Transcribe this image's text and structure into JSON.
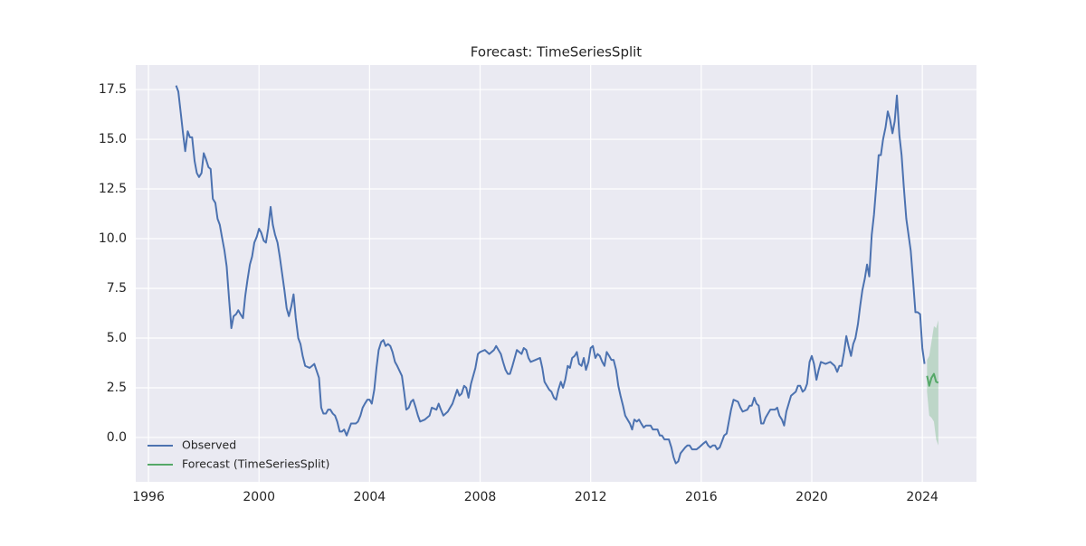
{
  "chart_data": {
    "type": "line",
    "title": "Forecast: TimeSeriesSplit",
    "xlim": [
      1995.54,
      2025.96
    ],
    "xticks": [
      1996,
      2000,
      2004,
      2008,
      2012,
      2016,
      2020,
      2024
    ],
    "ylim": [
      -2.23,
      18.73
    ],
    "yticks": [
      {
        "value": 0,
        "label": "0.0"
      },
      2.5,
      {
        "value": 5,
        "label": "5.0"
      },
      7.5,
      {
        "value": 10,
        "label": "10.0"
      },
      12.5,
      {
        "value": 15,
        "label": "15.0"
      },
      17.5
    ],
    "grid": true,
    "legend": "lower left",
    "series": [
      {
        "name": "Observed",
        "color": "#4c72b0",
        "x": [
          1997.0,
          1997.08,
          1997.17,
          1997.25,
          1997.33,
          1997.42,
          1997.5,
          1997.58,
          1997.67,
          1997.75,
          1997.83,
          1997.92,
          1998.0,
          1998.08,
          1998.17,
          1998.25,
          1998.33,
          1998.42,
          1998.5,
          1998.58,
          1998.67,
          1998.75,
          1998.83,
          1998.92,
          1999.0,
          1999.08,
          1999.17,
          1999.25,
          1999.33,
          1999.42,
          1999.5,
          1999.58,
          1999.67,
          1999.75,
          1999.83,
          1999.92,
          2000.0,
          2000.08,
          2000.17,
          2000.25,
          2000.33,
          2000.42,
          2000.5,
          2000.58,
          2000.67,
          2000.75,
          2000.83,
          2000.92,
          2001.0,
          2001.08,
          2001.17,
          2001.25,
          2001.33,
          2001.42,
          2001.5,
          2001.58,
          2001.67,
          2001.83,
          2001.92,
          2002.0,
          2002.17,
          2002.25,
          2002.33,
          2002.42,
          2002.5,
          2002.58,
          2002.67,
          2002.75,
          2002.83,
          2002.92,
          2003.0,
          2003.08,
          2003.17,
          2003.25,
          2003.33,
          2003.5,
          2003.58,
          2003.67,
          2003.75,
          2003.83,
          2003.92,
          2004.0,
          2004.08,
          2004.17,
          2004.25,
          2004.33,
          2004.42,
          2004.5,
          2004.58,
          2004.67,
          2004.75,
          2004.83,
          2004.92,
          2005.0,
          2005.17,
          2005.25,
          2005.33,
          2005.42,
          2005.5,
          2005.58,
          2005.67,
          2005.75,
          2005.83,
          2006.0,
          2006.17,
          2006.25,
          2006.42,
          2006.5,
          2006.58,
          2006.67,
          2006.83,
          2007.0,
          2007.17,
          2007.25,
          2007.33,
          2007.42,
          2007.5,
          2007.58,
          2007.67,
          2007.83,
          2007.92,
          2008.0,
          2008.17,
          2008.33,
          2008.5,
          2008.58,
          2008.75,
          2008.83,
          2008.92,
          2009.0,
          2009.08,
          2009.17,
          2009.25,
          2009.33,
          2009.5,
          2009.58,
          2009.67,
          2009.75,
          2009.83,
          2010.0,
          2010.17,
          2010.25,
          2010.33,
          2010.5,
          2010.58,
          2010.67,
          2010.75,
          2010.83,
          2010.92,
          2011.0,
          2011.08,
          2011.17,
          2011.25,
          2011.33,
          2011.42,
          2011.5,
          2011.58,
          2011.67,
          2011.75,
          2011.83,
          2011.92,
          2012.0,
          2012.08,
          2012.17,
          2012.25,
          2012.33,
          2012.42,
          2012.5,
          2012.58,
          2012.67,
          2012.75,
          2012.83,
          2012.92,
          2013.0,
          2013.08,
          2013.17,
          2013.25,
          2013.42,
          2013.5,
          2013.58,
          2013.67,
          2013.75,
          2013.83,
          2013.92,
          2014.0,
          2014.17,
          2014.25,
          2014.42,
          2014.5,
          2014.58,
          2014.67,
          2014.83,
          2014.92,
          2015.0,
          2015.08,
          2015.17,
          2015.25,
          2015.42,
          2015.5,
          2015.58,
          2015.67,
          2015.83,
          2015.92,
          2016.0,
          2016.08,
          2016.17,
          2016.25,
          2016.33,
          2016.42,
          2016.5,
          2016.58,
          2016.67,
          2016.75,
          2016.83,
          2016.92,
          2017.0,
          2017.08,
          2017.17,
          2017.33,
          2017.42,
          2017.5,
          2017.67,
          2017.75,
          2017.83,
          2017.92,
          2018.0,
          2018.08,
          2018.17,
          2018.25,
          2018.33,
          2018.5,
          2018.67,
          2018.75,
          2018.83,
          2018.92,
          2019.0,
          2019.08,
          2019.25,
          2019.42,
          2019.5,
          2019.58,
          2019.67,
          2019.75,
          2019.83,
          2019.92,
          2020.0,
          2020.08,
          2020.17,
          2020.25,
          2020.33,
          2020.5,
          2020.67,
          2020.83,
          2020.92,
          2021.0,
          2021.08,
          2021.17,
          2021.25,
          2021.33,
          2021.42,
          2021.5,
          2021.58,
          2021.67,
          2021.75,
          2021.83,
          2021.92,
          2022.0,
          2022.08,
          2022.17,
          2022.25,
          2022.33,
          2022.42,
          2022.5,
          2022.58,
          2022.67,
          2022.75,
          2022.83,
          2022.92,
          2023.0,
          2023.08,
          2023.17,
          2023.25,
          2023.33,
          2023.42,
          2023.5,
          2023.58,
          2023.67,
          2023.75,
          2023.83,
          2023.92,
          2024.0,
          2024.08
        ],
        "values": [
          17.7,
          17.4,
          16.3,
          15.3,
          14.4,
          15.4,
          15.1,
          15.1,
          13.9,
          13.3,
          13.1,
          13.3,
          14.3,
          14.0,
          13.6,
          13.5,
          12.0,
          11.8,
          11.0,
          10.7,
          10.0,
          9.4,
          8.6,
          6.9,
          5.5,
          6.1,
          6.2,
          6.4,
          6.2,
          6.0,
          7.1,
          7.9,
          8.7,
          9.1,
          9.8,
          10.1,
          10.5,
          10.3,
          9.9,
          9.8,
          10.5,
          11.6,
          10.7,
          10.2,
          9.8,
          9.1,
          8.3,
          7.4,
          6.5,
          6.1,
          6.6,
          7.2,
          6.0,
          5.0,
          4.7,
          4.1,
          3.6,
          3.5,
          3.6,
          3.7,
          3.0,
          1.5,
          1.2,
          1.2,
          1.4,
          1.4,
          1.2,
          1.1,
          0.8,
          0.3,
          0.3,
          0.4,
          0.1,
          0.4,
          0.7,
          0.7,
          0.8,
          1.1,
          1.5,
          1.7,
          1.9,
          1.9,
          1.7,
          2.4,
          3.5,
          4.4,
          4.8,
          4.9,
          4.6,
          4.7,
          4.6,
          4.3,
          3.8,
          3.6,
          3.1,
          2.3,
          1.4,
          1.5,
          1.8,
          1.9,
          1.5,
          1.1,
          0.8,
          0.9,
          1.1,
          1.5,
          1.4,
          1.7,
          1.4,
          1.1,
          1.3,
          1.7,
          2.4,
          2.1,
          2.2,
          2.6,
          2.5,
          2.0,
          2.7,
          3.5,
          4.2,
          4.3,
          4.4,
          4.2,
          4.4,
          4.6,
          4.2,
          3.8,
          3.4,
          3.2,
          3.2,
          3.6,
          4.0,
          4.4,
          4.2,
          4.5,
          4.4,
          4.0,
          3.8,
          3.9,
          4.0,
          3.5,
          2.8,
          2.4,
          2.3,
          2.0,
          1.9,
          2.4,
          2.8,
          2.5,
          2.9,
          3.6,
          3.5,
          4.0,
          4.1,
          4.3,
          3.7,
          3.6,
          4.0,
          3.4,
          3.8,
          4.5,
          4.6,
          4.0,
          4.2,
          4.1,
          3.8,
          3.6,
          4.3,
          4.1,
          3.9,
          3.9,
          3.4,
          2.6,
          2.1,
          1.6,
          1.1,
          0.7,
          0.4,
          0.9,
          0.8,
          0.9,
          0.7,
          0.5,
          0.6,
          0.6,
          0.4,
          0.4,
          0.1,
          0.1,
          -0.1,
          -0.1,
          -0.5,
          -1.0,
          -1.3,
          -1.2,
          -0.8,
          -0.5,
          -0.4,
          -0.4,
          -0.6,
          -0.6,
          -0.5,
          -0.4,
          -0.3,
          -0.2,
          -0.4,
          -0.5,
          -0.4,
          -0.4,
          -0.6,
          -0.5,
          -0.2,
          0.1,
          0.2,
          0.8,
          1.4,
          1.9,
          1.8,
          1.5,
          1.3,
          1.4,
          1.6,
          1.6,
          2.0,
          1.7,
          1.6,
          0.7,
          0.7,
          1.0,
          1.4,
          1.4,
          1.5,
          1.1,
          0.9,
          0.6,
          1.3,
          2.1,
          2.3,
          2.6,
          2.6,
          2.3,
          2.4,
          2.7,
          3.8,
          4.1,
          3.7,
          2.9,
          3.4,
          3.8,
          3.7,
          3.8,
          3.6,
          3.3,
          3.6,
          3.6,
          4.3,
          5.1,
          4.6,
          4.1,
          4.7,
          5.0,
          5.7,
          6.6,
          7.4,
          8.0,
          8.7,
          8.1,
          10.2,
          11.2,
          12.6,
          14.2,
          14.2,
          15.0,
          15.6,
          16.4,
          16.0,
          15.3,
          15.9,
          17.2,
          15.2,
          14.2,
          12.6,
          11.0,
          10.2,
          9.4,
          7.8,
          6.3,
          6.3,
          6.2,
          4.5,
          3.7
        ]
      },
      {
        "name": "Forecast (TimeSeriesSplit)",
        "color": "#55a868",
        "band_color": "#55a868",
        "x": [
          2024.17,
          2024.25,
          2024.33,
          2024.42,
          2024.5,
          2024.58
        ],
        "values": [
          3.1,
          2.6,
          3.0,
          3.2,
          2.8,
          2.75
        ],
        "lower": [
          2.3,
          1.1,
          1.0,
          0.8,
          -0.1,
          -0.4
        ],
        "upper": [
          3.9,
          4.1,
          4.8,
          5.6,
          5.5,
          5.9
        ]
      }
    ]
  }
}
